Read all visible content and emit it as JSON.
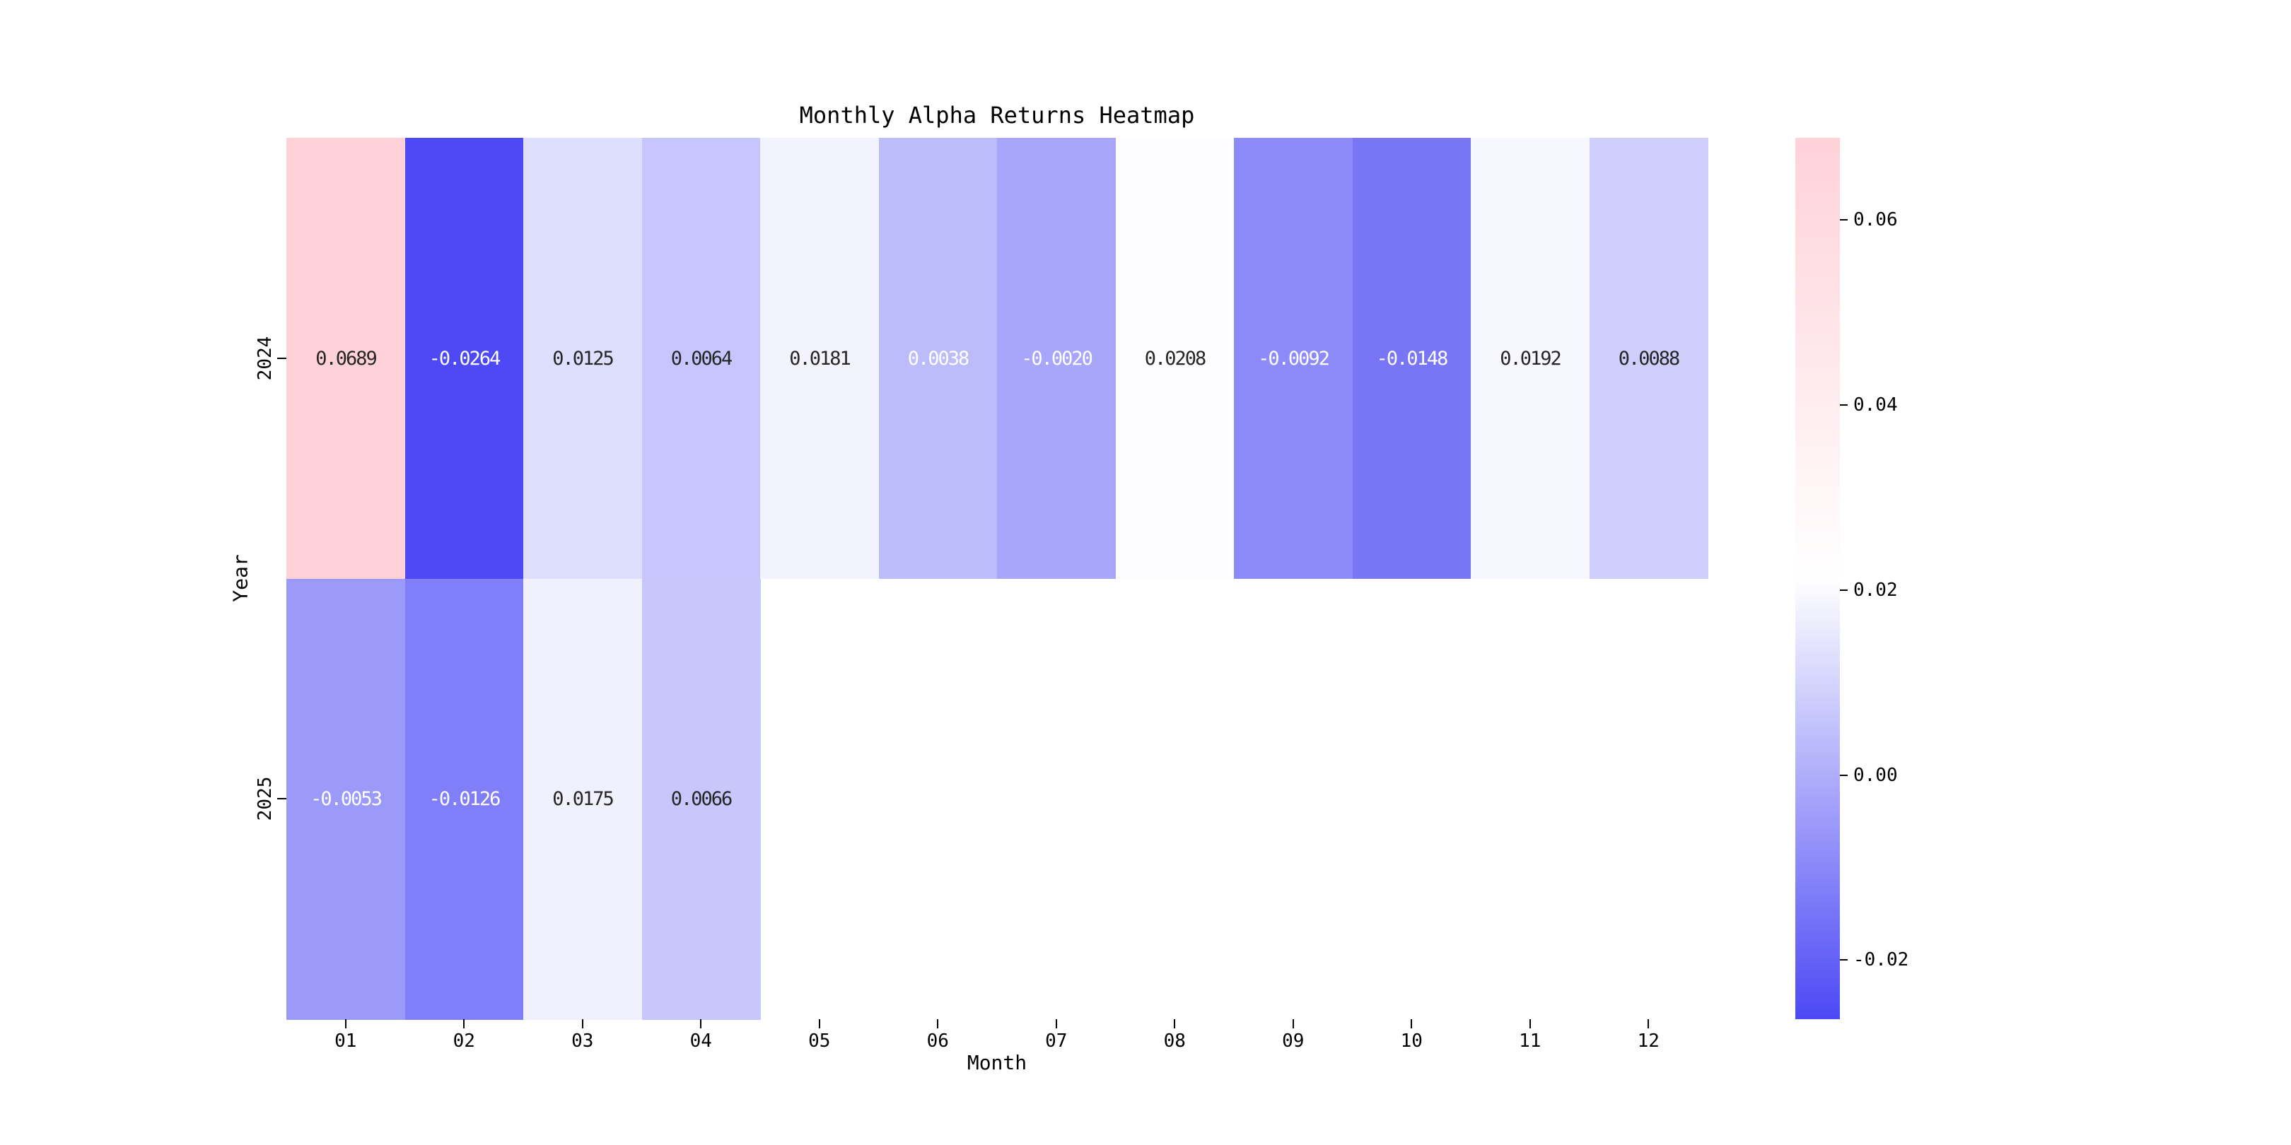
{
  "chart_data": {
    "type": "heatmap",
    "title": "Monthly Alpha Returns Heatmap",
    "xlabel": "Month",
    "ylabel": "Year",
    "x_categories": [
      "01",
      "02",
      "03",
      "04",
      "05",
      "06",
      "07",
      "08",
      "09",
      "10",
      "11",
      "12"
    ],
    "y_categories": [
      "2024",
      "2025"
    ],
    "vmin": -0.0264,
    "vmax": 0.0689,
    "rows": [
      {
        "year": "2024",
        "values": [
          0.0689,
          -0.0264,
          0.0125,
          0.0064,
          0.0181,
          0.0038,
          -0.002,
          0.0208,
          -0.0092,
          -0.0148,
          0.0192,
          0.0088
        ],
        "labels": [
          "0.0689",
          "-0.0264",
          "0.0125",
          "0.0064",
          "0.0181",
          "0.0038",
          "-0.0020",
          "0.0208",
          "-0.0092",
          "-0.0148",
          "0.0192",
          "0.0088"
        ],
        "text_colors": [
          "dark",
          "white",
          "dark",
          "dark",
          "dark",
          "white",
          "white",
          "dark",
          "white",
          "white",
          "dark",
          "dark"
        ]
      },
      {
        "year": "2025",
        "values": [
          -0.0053,
          -0.0126,
          0.0175,
          0.0066,
          null,
          null,
          null,
          null,
          null,
          null,
          null,
          null
        ],
        "labels": [
          "-0.0053",
          "-0.0126",
          "0.0175",
          "0.0066",
          "",
          "",
          "",
          "",
          "",
          "",
          "",
          ""
        ],
        "text_colors": [
          "white",
          "white",
          "dark",
          "dark",
          "",
          "",
          "",
          "",
          "",
          "",
          "",
          ""
        ]
      }
    ],
    "colorbar": {
      "tick_labels": [
        "0.06",
        "0.04",
        "0.02",
        "0.00",
        "-0.02"
      ],
      "tick_values": [
        0.06,
        0.04,
        0.02,
        0.0,
        -0.02
      ]
    },
    "colors": {
      "low": "#4c49f5",
      "mid": "#ffffff",
      "high": "#ffd1d9",
      "dark_text": "#262626",
      "white_text": "#ffffff",
      "background": "#ffffff"
    },
    "legend_position": "right-colorbar",
    "grid": false
  }
}
